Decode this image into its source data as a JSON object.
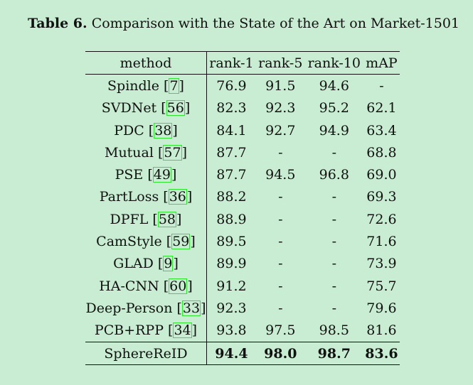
{
  "caption": {
    "label": "Table 6.",
    "text": "Comparison with the State of the Art on Market-1501"
  },
  "headers": [
    "method",
    "rank-1",
    "rank-5",
    "rank-10",
    "mAP"
  ],
  "rows": [
    {
      "method": "Spindle",
      "ref": "7",
      "values": [
        "76.9",
        "91.5",
        "94.6",
        "-"
      ]
    },
    {
      "method": "SVDNet",
      "ref": "56",
      "values": [
        "82.3",
        "92.3",
        "95.2",
        "62.1"
      ]
    },
    {
      "method": "PDC",
      "ref": "38",
      "values": [
        "84.1",
        "92.7",
        "94.9",
        "63.4"
      ]
    },
    {
      "method": "Mutual",
      "ref": "57",
      "values": [
        "87.7",
        "-",
        "-",
        "68.8"
      ]
    },
    {
      "method": "PSE",
      "ref": "49",
      "values": [
        "87.7",
        "94.5",
        "96.8",
        "69.0"
      ]
    },
    {
      "method": "PartLoss",
      "ref": "36",
      "values": [
        "88.2",
        "-",
        "-",
        "69.3"
      ]
    },
    {
      "method": "DPFL",
      "ref": "58",
      "values": [
        "88.9",
        "-",
        "-",
        "72.6"
      ]
    },
    {
      "method": "CamStyle",
      "ref": "59",
      "values": [
        "89.5",
        "-",
        "-",
        "71.6"
      ]
    },
    {
      "method": "GLAD",
      "ref": "9",
      "values": [
        "89.9",
        "-",
        "-",
        "73.9"
      ]
    },
    {
      "method": "HA-CNN",
      "ref": "60",
      "values": [
        "91.2",
        "-",
        "-",
        "75.7"
      ]
    },
    {
      "method": "Deep-Person",
      "ref": "33",
      "values": [
        "92.3",
        "-",
        "-",
        "79.6"
      ]
    },
    {
      "method": "PCB+RPP",
      "ref": "34",
      "values": [
        "93.8",
        "97.5",
        "98.5",
        "81.6"
      ]
    }
  ],
  "ours": {
    "method": "SphereReID",
    "values": [
      "94.4",
      "98.0",
      "98.7",
      "83.6"
    ]
  }
}
